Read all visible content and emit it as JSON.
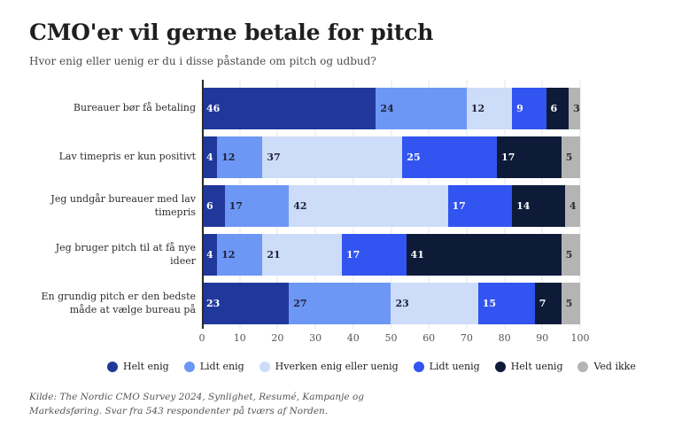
{
  "chart_data": {
    "type": "bar",
    "orientation": "horizontal",
    "stacked": true,
    "title": "CMO'er vil gerne betale for pitch",
    "subtitle": "Hvor enig eller uenig er du i disse påstande om pitch og udbud?",
    "categories": [
      "Bureauer bør få betaling",
      "Lav timepris er kun positivt",
      "Jeg undgår bureauer med lav timepris",
      "Jeg bruger pitch til at få nye ideer",
      "En grundig pitch er den bedste måde at vælge bureau på"
    ],
    "series": [
      {
        "name": "Helt enig",
        "color": "#21389B",
        "value_color": "#ffffff",
        "values": [
          46,
          4,
          6,
          4,
          23
        ]
      },
      {
        "name": "Lidt enig",
        "color": "#6C97F5",
        "value_color": "#21213a",
        "values": [
          24,
          12,
          17,
          12,
          27
        ]
      },
      {
        "name": "Hverken enig eller uenig",
        "color": "#CDDCF8",
        "value_color": "#21213a",
        "values": [
          12,
          37,
          42,
          21,
          23
        ]
      },
      {
        "name": "Lidt uenig",
        "color": "#3254F0",
        "value_color": "#ffffff",
        "values": [
          9,
          25,
          17,
          17,
          15
        ]
      },
      {
        "name": "Helt uenig",
        "color": "#0E1B38",
        "value_color": "#ffffff",
        "values": [
          6,
          17,
          14,
          41,
          7
        ]
      },
      {
        "name": "Ved ikke",
        "color": "#B4B4B4",
        "value_color": "#2e2e2e",
        "values": [
          3,
          5,
          4,
          5,
          5
        ]
      }
    ],
    "xlim": [
      0,
      100
    ],
    "x_ticks": [
      0,
      10,
      20,
      30,
      40,
      50,
      60,
      70,
      80,
      90,
      100
    ],
    "grid": "vertical",
    "legend_position": "bottom",
    "source": "Kilde: The Nordic CMO Survey 2024, Synlighet, Resumé, Kampanje og Markedsføring. Svar fra 543 respondenter på tværs af Norden."
  }
}
